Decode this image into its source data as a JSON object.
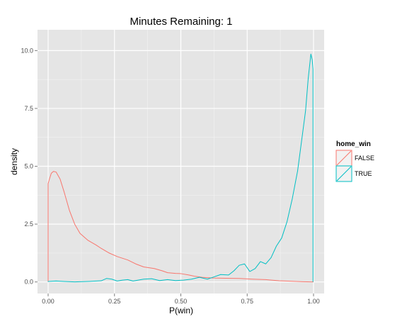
{
  "chart_data": {
    "type": "area",
    "title": "Minutes Remaining: 1",
    "xlabel": "P(win)",
    "ylabel": "density",
    "xlim": [
      -0.04,
      1.04
    ],
    "ylim": [
      -0.5,
      10.9
    ],
    "x_ticks": [
      0.0,
      0.25,
      0.5,
      0.75,
      1.0
    ],
    "x_tick_labels": [
      "0.00",
      "0.25",
      "0.50",
      "0.75",
      "1.00"
    ],
    "y_ticks": [
      0.0,
      2.5,
      5.0,
      7.5,
      10.0
    ],
    "y_tick_labels": [
      "0.0",
      "2.5",
      "5.0",
      "7.5",
      "10.0"
    ],
    "grid": true,
    "legend": {
      "title": "home_win",
      "placement": "right",
      "entries": [
        "FALSE",
        "TRUE"
      ]
    },
    "series": [
      {
        "name": "FALSE",
        "color": "#f8766d",
        "points": [
          [
            0.0,
            0.0
          ],
          [
            0.0,
            4.25
          ],
          [
            0.005,
            4.45
          ],
          [
            0.012,
            4.7
          ],
          [
            0.02,
            4.78
          ],
          [
            0.03,
            4.75
          ],
          [
            0.045,
            4.45
          ],
          [
            0.06,
            3.9
          ],
          [
            0.08,
            3.1
          ],
          [
            0.1,
            2.5
          ],
          [
            0.12,
            2.1
          ],
          [
            0.15,
            1.8
          ],
          [
            0.18,
            1.6
          ],
          [
            0.2,
            1.45
          ],
          [
            0.23,
            1.25
          ],
          [
            0.26,
            1.1
          ],
          [
            0.3,
            0.95
          ],
          [
            0.33,
            0.78
          ],
          [
            0.36,
            0.65
          ],
          [
            0.4,
            0.58
          ],
          [
            0.43,
            0.48
          ],
          [
            0.45,
            0.4
          ],
          [
            0.48,
            0.37
          ],
          [
            0.5,
            0.36
          ],
          [
            0.53,
            0.3
          ],
          [
            0.55,
            0.25
          ],
          [
            0.58,
            0.2
          ],
          [
            0.62,
            0.17
          ],
          [
            0.67,
            0.16
          ],
          [
            0.72,
            0.15
          ],
          [
            0.77,
            0.12
          ],
          [
            0.82,
            0.1
          ],
          [
            0.87,
            0.05
          ],
          [
            0.92,
            0.03
          ],
          [
            0.96,
            0.01
          ],
          [
            0.99,
            0.0
          ],
          [
            1.0,
            0.0
          ]
        ]
      },
      {
        "name": "TRUE",
        "color": "#00bfc4",
        "points": [
          [
            0.0,
            0.0
          ],
          [
            0.0,
            0.02
          ],
          [
            0.03,
            0.04
          ],
          [
            0.06,
            0.02
          ],
          [
            0.1,
            0.0
          ],
          [
            0.15,
            0.02
          ],
          [
            0.2,
            0.05
          ],
          [
            0.22,
            0.15
          ],
          [
            0.24,
            0.12
          ],
          [
            0.26,
            0.04
          ],
          [
            0.28,
            0.08
          ],
          [
            0.3,
            0.1
          ],
          [
            0.32,
            0.04
          ],
          [
            0.36,
            0.12
          ],
          [
            0.39,
            0.14
          ],
          [
            0.42,
            0.06
          ],
          [
            0.45,
            0.1
          ],
          [
            0.48,
            0.06
          ],
          [
            0.51,
            0.08
          ],
          [
            0.54,
            0.12
          ],
          [
            0.57,
            0.2
          ],
          [
            0.6,
            0.12
          ],
          [
            0.62,
            0.2
          ],
          [
            0.65,
            0.32
          ],
          [
            0.68,
            0.3
          ],
          [
            0.7,
            0.48
          ],
          [
            0.72,
            0.72
          ],
          [
            0.74,
            0.78
          ],
          [
            0.76,
            0.45
          ],
          [
            0.78,
            0.58
          ],
          [
            0.8,
            0.88
          ],
          [
            0.82,
            0.78
          ],
          [
            0.84,
            1.05
          ],
          [
            0.86,
            1.55
          ],
          [
            0.88,
            1.9
          ],
          [
            0.9,
            2.6
          ],
          [
            0.92,
            3.6
          ],
          [
            0.94,
            4.8
          ],
          [
            0.955,
            6.1
          ],
          [
            0.97,
            7.4
          ],
          [
            0.98,
            8.8
          ],
          [
            0.99,
            9.85
          ],
          [
            0.995,
            9.6
          ],
          [
            0.998,
            9.2
          ],
          [
            0.998,
            0.0
          ]
        ]
      }
    ]
  }
}
